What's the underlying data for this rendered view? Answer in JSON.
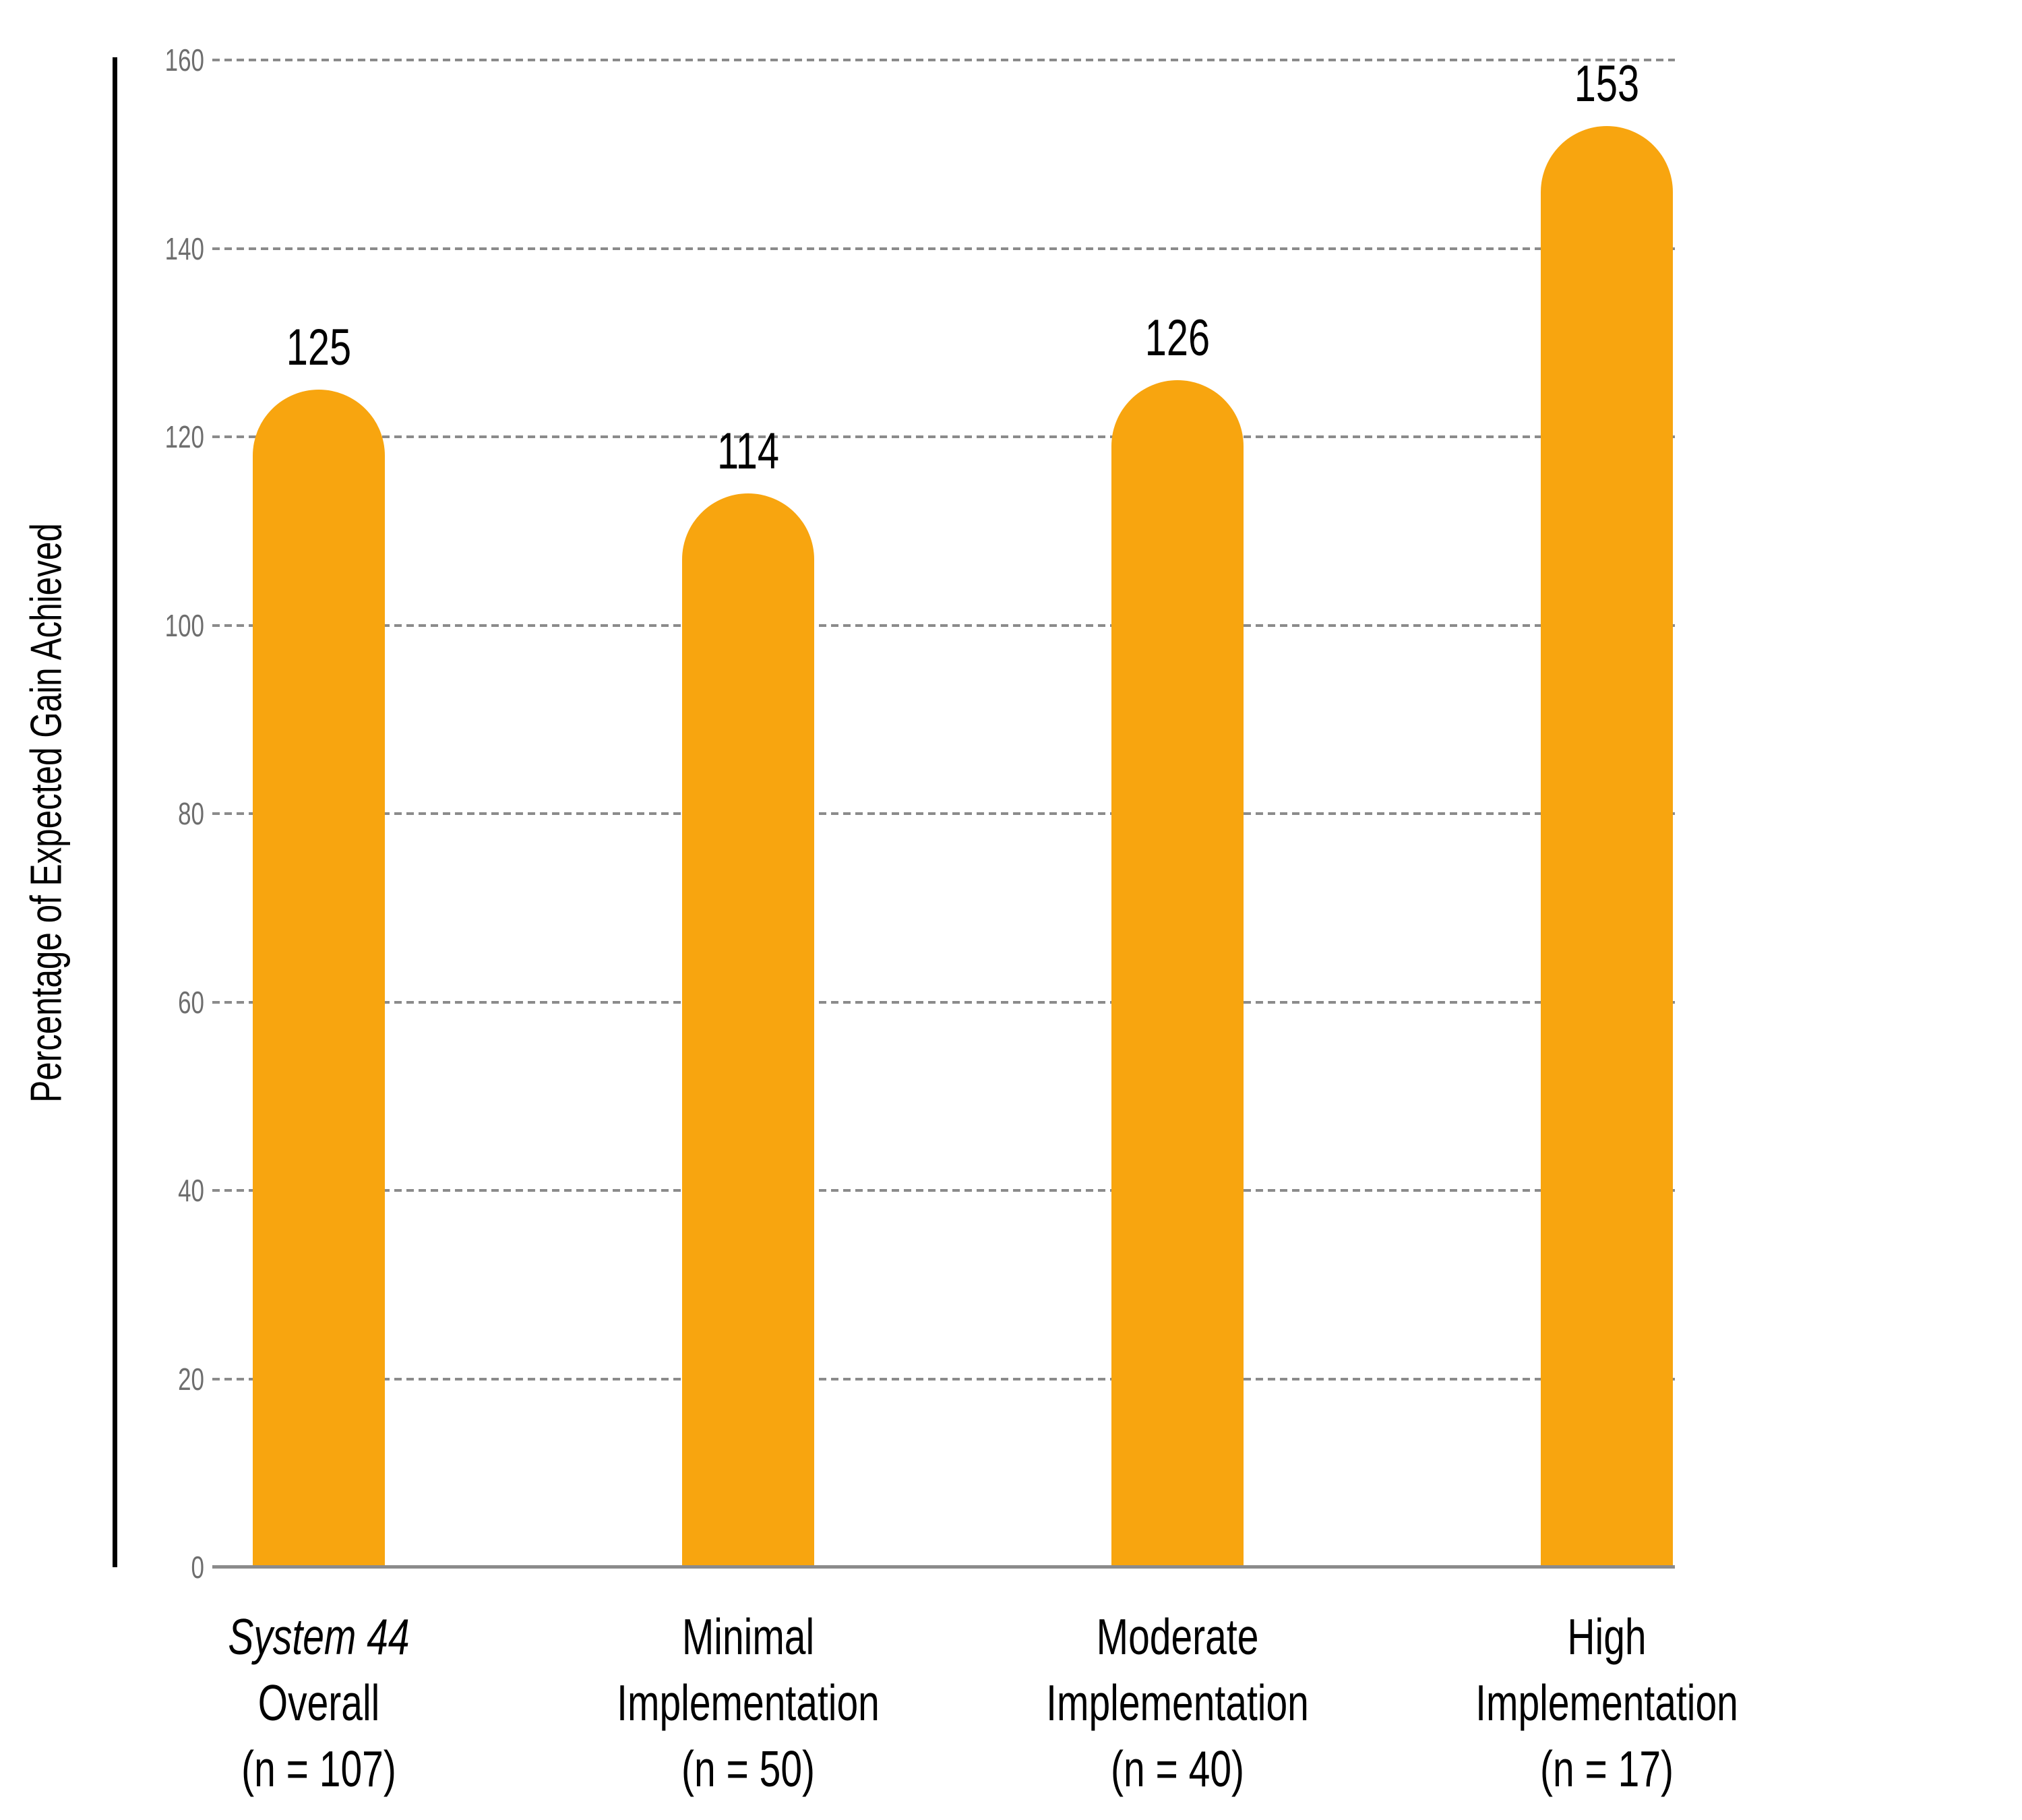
{
  "chart_data": {
    "type": "bar",
    "title": "",
    "xlabel": "",
    "ylabel": "Percentage of Expected Gain Achieved",
    "ylim": [
      0,
      160
    ],
    "ytick_interval": 20,
    "yticks": [
      "0",
      "20",
      "40",
      "60",
      "80",
      "100",
      "120",
      "140",
      "160"
    ],
    "grid": "horizontal-dashed",
    "legend_position": "none",
    "bar_color": "#F8A50F",
    "bar_style": "rounded-top",
    "gridline_color": "#8b8b8b",
    "tick_label_color": "#6e6e6e",
    "categories": [
      "System 44 Overall (n = 107)",
      "Minimal Implementation (n = 50)",
      "Moderate Implementation (n = 40)",
      "High Implementation (n = 17)"
    ],
    "category_lines": [
      [
        "System 44",
        "Overall",
        "(n = 107)"
      ],
      [
        "Minimal",
        "Implementation",
        "(n = 50)"
      ],
      [
        "Moderate",
        "Implementation",
        "(n = 40)"
      ],
      [
        "High",
        "Implementation",
        "(n = 17)"
      ]
    ],
    "values": [
      125,
      114,
      126,
      153
    ]
  }
}
